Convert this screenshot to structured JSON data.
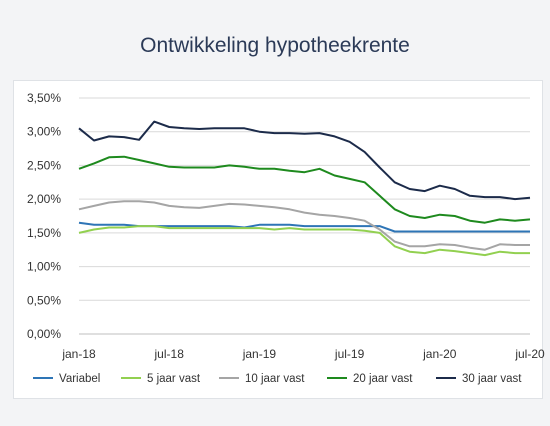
{
  "title": "Ontwikkeling hypotheekrente",
  "chart_data": {
    "type": "line",
    "x": [
      "jan-18",
      "feb-18",
      "mrt-18",
      "apr-18",
      "mei-18",
      "jun-18",
      "jul-18",
      "aug-18",
      "sep-18",
      "okt-18",
      "nov-18",
      "dec-18",
      "jan-19",
      "feb-19",
      "mrt-19",
      "apr-19",
      "mei-19",
      "jun-19",
      "jul-19",
      "aug-19",
      "sep-19",
      "okt-19",
      "nov-19",
      "dec-19",
      "jan-20",
      "feb-20",
      "mrt-20",
      "apr-20",
      "mei-20",
      "jun-20",
      "jul-20"
    ],
    "x_tick_labels": [
      "jan-18",
      "jul-18",
      "jan-19",
      "jul-19",
      "jan-20",
      "jul-20"
    ],
    "y_tick_labels": [
      "0,00%",
      "0,50%",
      "1,00%",
      "1,50%",
      "2,00%",
      "2,50%",
      "3,00%",
      "3,50%"
    ],
    "ylim": [
      0,
      3.5
    ],
    "legend_position": "bottom",
    "grid": true,
    "series": [
      {
        "name": "Variabel",
        "color": "#2e75b6",
        "values": [
          1.65,
          1.62,
          1.62,
          1.62,
          1.6,
          1.6,
          1.6,
          1.6,
          1.6,
          1.6,
          1.6,
          1.58,
          1.62,
          1.62,
          1.62,
          1.6,
          1.6,
          1.6,
          1.6,
          1.6,
          1.6,
          1.52,
          1.52,
          1.52,
          1.52,
          1.52,
          1.52,
          1.52,
          1.52,
          1.52,
          1.52
        ]
      },
      {
        "name": "5 jaar vast",
        "color": "#92d050",
        "values": [
          1.5,
          1.55,
          1.58,
          1.58,
          1.6,
          1.6,
          1.57,
          1.57,
          1.57,
          1.57,
          1.57,
          1.57,
          1.57,
          1.55,
          1.57,
          1.55,
          1.55,
          1.55,
          1.55,
          1.53,
          1.5,
          1.3,
          1.22,
          1.2,
          1.25,
          1.23,
          1.2,
          1.17,
          1.22,
          1.2,
          1.2
        ]
      },
      {
        "name": "10 jaar vast",
        "color": "#a5a5a5",
        "values": [
          1.85,
          1.9,
          1.95,
          1.97,
          1.97,
          1.95,
          1.9,
          1.88,
          1.87,
          1.9,
          1.93,
          1.92,
          1.9,
          1.88,
          1.85,
          1.8,
          1.77,
          1.75,
          1.72,
          1.68,
          1.55,
          1.37,
          1.3,
          1.3,
          1.33,
          1.32,
          1.28,
          1.25,
          1.33,
          1.32,
          1.32
        ]
      },
      {
        "name": "20 jaar vast",
        "color": "#1e8a1e",
        "values": [
          2.45,
          2.53,
          2.62,
          2.63,
          2.58,
          2.53,
          2.48,
          2.47,
          2.47,
          2.47,
          2.5,
          2.48,
          2.45,
          2.45,
          2.42,
          2.4,
          2.45,
          2.35,
          2.3,
          2.25,
          2.05,
          1.85,
          1.75,
          1.72,
          1.77,
          1.75,
          1.68,
          1.65,
          1.7,
          1.68,
          1.7
        ]
      },
      {
        "name": "30 jaar vast",
        "color": "#1c2b4a",
        "values": [
          3.05,
          2.87,
          2.93,
          2.92,
          2.88,
          3.15,
          3.07,
          3.05,
          3.04,
          3.05,
          3.05,
          3.05,
          3.0,
          2.98,
          2.98,
          2.97,
          2.98,
          2.93,
          2.85,
          2.7,
          2.47,
          2.25,
          2.15,
          2.12,
          2.2,
          2.15,
          2.05,
          2.03,
          2.03,
          2.0,
          2.02
        ]
      }
    ]
  }
}
